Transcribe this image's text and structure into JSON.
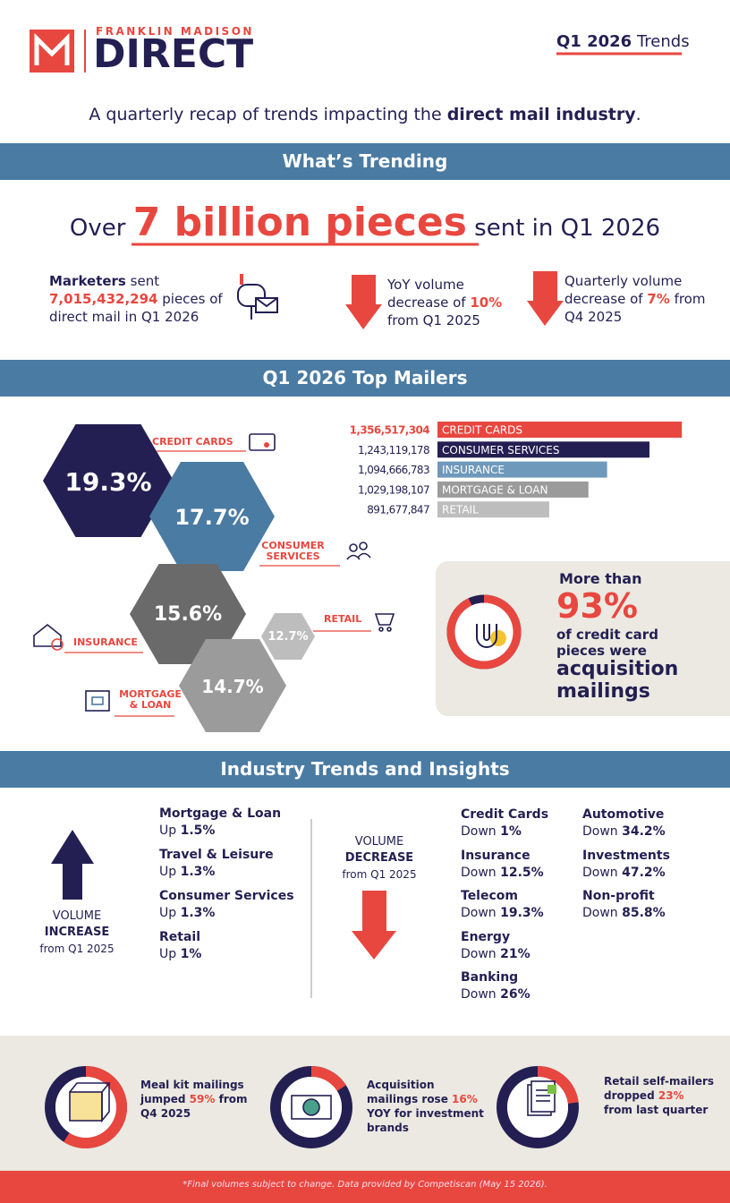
{
  "header": {
    "brand_top": "FRANKLIN MADISON",
    "brand": "DIRECT",
    "period": "Q1 2026",
    "suffix": "Trends"
  },
  "intro": {
    "text": "A quarterly recap of trends impacting the",
    "bold": "direct mail industry",
    "end": "."
  },
  "trending": {
    "heading": "What’s Trending",
    "headline_pre": "Over",
    "headline_big": "7 billion pieces",
    "headline_post": "sent in Q1 2026",
    "stats": [
      {
        "bold": "Marketers",
        "text": "sent",
        "figure": "7,015,432,294",
        "post": "pieces of direct mail in Q1 2026"
      },
      {
        "text": "YoY volume decrease of",
        "figure": "10%",
        "post": "from Q1 2025"
      },
      {
        "text": "Quarterly volume decrease of",
        "figure": "7%",
        "post": "from Q4 2025"
      }
    ]
  },
  "top_mailers": {
    "heading": "Q1 2026 Top Mailers",
    "shares": [
      {
        "name": "CREDIT CARDS",
        "percent": "19.3%"
      },
      {
        "name": "CONSUMER SERVICES",
        "percent": "17.7%"
      },
      {
        "name": "INSURANCE",
        "percent": "15.6%"
      },
      {
        "name": "MORTGAGE & LOAN",
        "percent": "14.7%"
      },
      {
        "name": "RETAIL",
        "percent": "12.7%"
      }
    ],
    "bars": {
      "type": "bar",
      "categories": [
        "CREDIT CARDS",
        "CONSUMER SERVICES",
        "INSURANCE",
        "MORTGAGE & LOAN",
        "RETAIL"
      ],
      "values": [
        1356517304,
        1243119178,
        1094666783,
        1029198107,
        891677847
      ],
      "value_labels": [
        "1,356,517,304",
        "1,243,119,178",
        "1,094,666,783",
        "1,029,198,107",
        "891,677,847"
      ],
      "colors": [
        "#e8473f",
        "#231f52",
        "#6e99bb",
        "#9b9b9b",
        "#bdbdbd"
      ],
      "xlim": [
        500000000,
        1400000000
      ]
    }
  },
  "callout": {
    "pre": "More than",
    "value": 93,
    "label": "93%",
    "text": "of credit card pieces were",
    "emphasis": "acquisition mailings"
  },
  "industry": {
    "heading": "Industry Trends and Insights",
    "increase": {
      "word": "VOLUME",
      "direction": "INCREASE",
      "period": "from Q1 2025",
      "items": [
        {
          "name": "Mortgage & Loan",
          "dir": "Up",
          "change": "1.5%"
        },
        {
          "name": "Travel & Leisure",
          "dir": "Up",
          "change": "1.3%"
        },
        {
          "name": "Consumer Services",
          "dir": "Up",
          "change": "1.3%"
        },
        {
          "name": "Retail",
          "dir": "Up",
          "change": "1%"
        }
      ]
    },
    "decrease": {
      "word": "VOLUME",
      "direction": "DECREASE",
      "period": "from Q1 2025",
      "items": [
        {
          "name": "Credit Cards",
          "dir": "Down",
          "change": "1%"
        },
        {
          "name": "Insurance",
          "dir": "Down",
          "change": "12.5%"
        },
        {
          "name": "Telecom",
          "dir": "Down",
          "change": "19.3%"
        },
        {
          "name": "Energy",
          "dir": "Down",
          "change": "21%"
        },
        {
          "name": "Banking",
          "dir": "Down",
          "change": "26%"
        },
        {
          "name": "Automotive",
          "dir": "Down",
          "change": "34.2%"
        },
        {
          "name": "Investments",
          "dir": "Down",
          "change": "47.2%"
        },
        {
          "name": "Non-profit",
          "dir": "Down",
          "change": "85.8%"
        }
      ]
    }
  },
  "insights": [
    {
      "value": 59,
      "pre": "Meal kit mailings jumped",
      "label": "59%",
      "post": "from Q4 2025"
    },
    {
      "value": 16,
      "pre": "Acquisition mailings rose",
      "label": "16%",
      "post": "YOY for investment brands"
    },
    {
      "value": 23,
      "pre": "Retail self-mailers dropped",
      "label": "23%",
      "post": "from last quarter"
    }
  ],
  "footer": "*Final volumes subject to change. Data provided by Competiscan (May 15 2026)."
}
